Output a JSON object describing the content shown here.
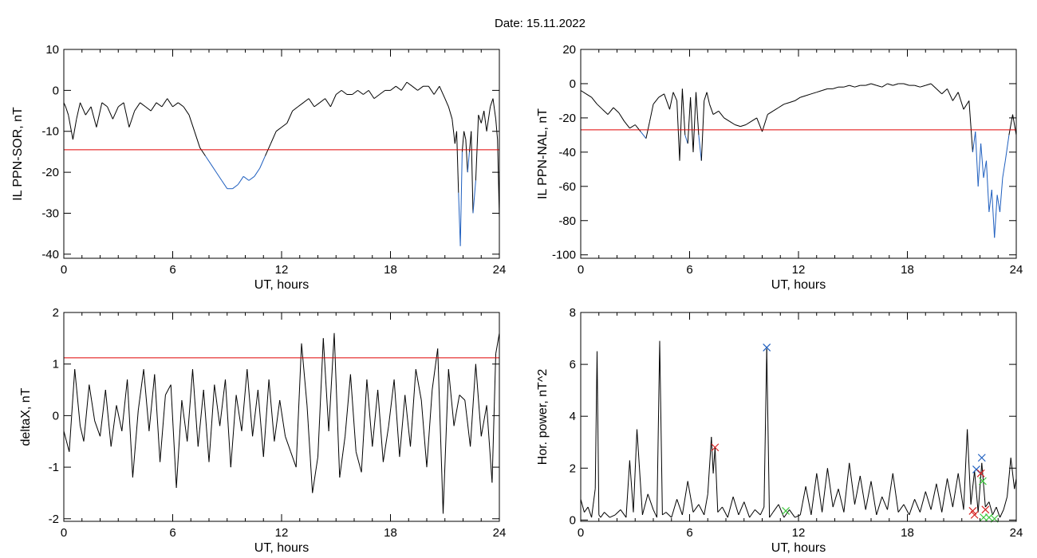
{
  "title": "Date:  15.11.2022",
  "colors": {
    "trace": "#000000",
    "below_threshold": "#1f5fbf",
    "threshold": "#e00000",
    "marker_blue": "#1f5fbf",
    "marker_red": "#d62020",
    "marker_green": "#3cc83c"
  },
  "chart_data": [
    {
      "id": "sor",
      "type": "line",
      "xlabel": "UT, hours",
      "ylabel": "IL PPN-SOR, nT",
      "xlim": [
        0,
        24
      ],
      "ylim": [
        -41,
        10
      ],
      "xticks": [
        "0",
        "6",
        "12",
        "18",
        "24"
      ],
      "yticks": [
        "10",
        "0",
        "-10",
        "-20",
        "-30",
        "-40"
      ],
      "threshold": -14.5,
      "grid": false,
      "x": [
        0,
        0.1,
        0.25,
        0.5,
        0.7,
        0.9,
        1.2,
        1.5,
        1.8,
        2.1,
        2.4,
        2.7,
        3.0,
        3.3,
        3.6,
        3.9,
        4.2,
        4.5,
        4.8,
        5.1,
        5.4,
        5.7,
        6.0,
        6.3,
        6.6,
        6.9,
        7.2,
        7.5,
        7.8,
        8.1,
        8.4,
        8.7,
        9.0,
        9.3,
        9.6,
        9.9,
        10.2,
        10.5,
        10.8,
        11.1,
        11.4,
        11.7,
        12.0,
        12.3,
        12.6,
        12.9,
        13.2,
        13.5,
        13.8,
        14.1,
        14.4,
        14.7,
        15.0,
        15.3,
        15.6,
        15.9,
        16.2,
        16.5,
        16.8,
        17.1,
        17.4,
        17.7,
        18.0,
        18.3,
        18.6,
        18.9,
        19.2,
        19.5,
        19.8,
        20.1,
        20.4,
        20.7,
        21.0,
        21.2,
        21.4,
        21.55,
        21.65,
        21.75,
        21.85,
        21.95,
        22.05,
        22.15,
        22.25,
        22.35,
        22.45,
        22.55,
        22.7,
        22.85,
        23.0,
        23.15,
        23.3,
        23.5,
        23.65,
        23.8,
        23.9,
        24.0
      ],
      "y": [
        -3,
        -4,
        -6,
        -12,
        -7,
        -3,
        -6,
        -4,
        -9,
        -3,
        -4,
        -7,
        -4,
        -3,
        -9,
        -5,
        -3,
        -4,
        -5,
        -3,
        -4,
        -2,
        -4,
        -3,
        -4,
        -6,
        -10,
        -14,
        -16,
        -18,
        -20,
        -22,
        -24,
        -24,
        -23,
        -21,
        -22,
        -21,
        -19,
        -16,
        -13,
        -10,
        -9,
        -8,
        -5,
        -4,
        -3,
        -2,
        -4,
        -3,
        -2,
        -4,
        -1,
        0,
        -1,
        -1,
        0,
        -1,
        0,
        -2,
        -1,
        0,
        0,
        1,
        0,
        2,
        1,
        0,
        1,
        1,
        -1,
        1,
        -2,
        -4,
        -7,
        -13,
        -10,
        -25,
        -38,
        -15,
        -10,
        -12,
        -20,
        -15,
        -10,
        -30,
        -22,
        -6,
        -8,
        -5,
        -10,
        -4,
        -2,
        -7,
        -12,
        -31
      ]
    },
    {
      "id": "nal",
      "type": "line",
      "xlabel": "UT, hours",
      "ylabel": "IL PPN-NAL, nT",
      "xlim": [
        0,
        24
      ],
      "ylim": [
        -102,
        20
      ],
      "xticks": [
        "0",
        "6",
        "12",
        "18",
        "24"
      ],
      "yticks": [
        "20",
        "0",
        "-20",
        "-40",
        "-60",
        "-80",
        "-100"
      ],
      "threshold": -27,
      "grid": false,
      "x": [
        0,
        0.3,
        0.6,
        0.9,
        1.2,
        1.5,
        1.8,
        2.1,
        2.4,
        2.7,
        3.0,
        3.3,
        3.6,
        3.8,
        4.0,
        4.3,
        4.6,
        4.9,
        5.1,
        5.3,
        5.45,
        5.6,
        5.75,
        5.9,
        6.05,
        6.2,
        6.35,
        6.5,
        6.65,
        6.8,
        6.95,
        7.1,
        7.3,
        7.6,
        7.9,
        8.2,
        8.5,
        8.8,
        9.1,
        9.4,
        9.7,
        10.0,
        10.3,
        10.6,
        10.9,
        11.2,
        11.5,
        11.8,
        12.1,
        12.4,
        12.7,
        13.0,
        13.3,
        13.6,
        13.9,
        14.2,
        14.5,
        14.8,
        15.1,
        15.4,
        15.7,
        16.0,
        16.3,
        16.6,
        16.9,
        17.2,
        17.5,
        17.8,
        18.1,
        18.4,
        18.7,
        19.0,
        19.3,
        19.6,
        19.9,
        20.2,
        20.5,
        20.8,
        21.1,
        21.4,
        21.6,
        21.75,
        21.9,
        22.05,
        22.2,
        22.35,
        22.5,
        22.65,
        22.8,
        22.95,
        23.1,
        23.25,
        23.4,
        23.6,
        23.8,
        24.0
      ],
      "y": [
        -4,
        -6,
        -8,
        -12,
        -15,
        -18,
        -14,
        -17,
        -22,
        -26,
        -24,
        -28,
        -32,
        -22,
        -12,
        -8,
        -6,
        -15,
        -5,
        -10,
        -45,
        -3,
        -30,
        -35,
        -8,
        -40,
        -5,
        -30,
        -45,
        -10,
        -5,
        -12,
        -18,
        -16,
        -20,
        -22,
        -24,
        -25,
        -24,
        -22,
        -20,
        -28,
        -18,
        -16,
        -14,
        -12,
        -11,
        -10,
        -8,
        -7,
        -6,
        -5,
        -4,
        -3,
        -3,
        -2,
        -2,
        -1,
        -2,
        -1,
        -1,
        0,
        -1,
        -2,
        0,
        -1,
        0,
        0,
        -1,
        -1,
        -2,
        -1,
        0,
        -3,
        -6,
        -3,
        -10,
        -5,
        -15,
        -10,
        -40,
        -28,
        -60,
        -35,
        -55,
        -45,
        -75,
        -62,
        -90,
        -65,
        -75,
        -55,
        -45,
        -30,
        -18,
        -30
      ]
    },
    {
      "id": "deltax",
      "type": "line",
      "xlabel": "UT, hours",
      "ylabel": "deltaX, nT",
      "xlim": [
        0,
        24
      ],
      "ylim": [
        -2.05,
        2
      ],
      "xticks": [
        "0",
        "6",
        "12",
        "18",
        "24"
      ],
      "yticks": [
        "2",
        "1",
        "0",
        "-1",
        "-2"
      ],
      "threshold": 1.12,
      "grid": false,
      "x": [
        0,
        0.3,
        0.6,
        0.9,
        1.1,
        1.4,
        1.7,
        2.0,
        2.3,
        2.6,
        2.9,
        3.2,
        3.5,
        3.8,
        4.1,
        4.4,
        4.7,
        5.0,
        5.3,
        5.6,
        5.9,
        6.2,
        6.5,
        6.8,
        7.1,
        7.4,
        7.7,
        8.0,
        8.3,
        8.6,
        8.9,
        9.2,
        9.5,
        9.8,
        10.1,
        10.4,
        10.7,
        11.0,
        11.3,
        11.6,
        11.9,
        12.2,
        12.5,
        12.8,
        13.1,
        13.4,
        13.7,
        14.0,
        14.3,
        14.6,
        14.9,
        15.2,
        15.5,
        15.8,
        16.1,
        16.4,
        16.7,
        17.0,
        17.3,
        17.6,
        17.9,
        18.2,
        18.5,
        18.8,
        19.1,
        19.4,
        19.7,
        20.0,
        20.3,
        20.6,
        20.9,
        21.2,
        21.5,
        21.8,
        22.1,
        22.4,
        22.7,
        23.0,
        23.3,
        23.6,
        23.8,
        24.0
      ],
      "y": [
        -0.3,
        -0.7,
        0.9,
        -0.2,
        -0.5,
        0.6,
        -0.1,
        -0.4,
        0.5,
        -0.6,
        0.2,
        -0.3,
        0.7,
        -1.2,
        0.1,
        0.9,
        -0.3,
        0.8,
        -0.9,
        0.4,
        0.6,
        -1.4,
        0.3,
        -0.5,
        0.9,
        -0.6,
        0.5,
        -0.9,
        0.6,
        -0.2,
        0.7,
        -1.0,
        0.4,
        -0.3,
        0.9,
        -0.4,
        0.5,
        -0.8,
        0.7,
        -0.5,
        0.3,
        -0.4,
        -0.7,
        -1.0,
        1.4,
        0.2,
        -1.5,
        -0.8,
        1.5,
        -0.3,
        1.6,
        -1.2,
        -0.4,
        0.8,
        -0.7,
        -1.1,
        0.7,
        -0.6,
        0.5,
        -0.9,
        -0.2,
        0.7,
        -0.8,
        0.4,
        -0.6,
        0.9,
        0.3,
        -1.0,
        0.5,
        1.3,
        -1.9,
        0.9,
        -0.2,
        0.4,
        0.3,
        -0.6,
        1.0,
        -0.4,
        0.2,
        -1.3,
        1.2,
        1.6
      ]
    },
    {
      "id": "power",
      "type": "line",
      "xlabel": "UT, hours",
      "ylabel": "Hor. power, nT^2",
      "xlim": [
        0,
        24
      ],
      "ylim": [
        -0.05,
        8
      ],
      "xticks": [
        "0",
        "6",
        "12",
        "18",
        "24"
      ],
      "yticks": [
        "8",
        "6",
        "4",
        "2",
        "0"
      ],
      "grid": false,
      "x": [
        0,
        0.2,
        0.4,
        0.6,
        0.8,
        0.9,
        1.0,
        1.1,
        1.3,
        1.6,
        1.9,
        2.2,
        2.5,
        2.7,
        2.9,
        3.1,
        3.4,
        3.7,
        4.0,
        4.2,
        4.35,
        4.5,
        4.7,
        5.0,
        5.3,
        5.6,
        5.9,
        6.2,
        6.5,
        6.8,
        7.0,
        7.2,
        7.3,
        7.4,
        7.55,
        7.8,
        8.1,
        8.4,
        8.7,
        9.0,
        9.3,
        9.6,
        9.9,
        10.1,
        10.25,
        10.4,
        10.6,
        10.9,
        11.2,
        11.5,
        11.8,
        12.1,
        12.4,
        12.7,
        13.0,
        13.3,
        13.6,
        13.9,
        14.2,
        14.5,
        14.8,
        15.1,
        15.4,
        15.7,
        16.0,
        16.3,
        16.6,
        16.9,
        17.2,
        17.5,
        17.8,
        18.1,
        18.4,
        18.7,
        19.0,
        19.3,
        19.6,
        19.9,
        20.2,
        20.5,
        20.8,
        21.1,
        21.3,
        21.5,
        21.7,
        21.9,
        22.1,
        22.3,
        22.5,
        22.7,
        22.9,
        23.1,
        23.3,
        23.5,
        23.7,
        23.9,
        24.0
      ],
      "y": [
        0.8,
        0.3,
        0.5,
        0.1,
        1.2,
        6.5,
        0.2,
        0.1,
        0.3,
        0.1,
        0.2,
        0.4,
        0.1,
        2.3,
        0.3,
        3.5,
        0.2,
        1.0,
        0.4,
        0.1,
        6.9,
        0.2,
        0.3,
        0.1,
        0.8,
        0.2,
        1.5,
        0.3,
        0.6,
        0.2,
        1.0,
        3.2,
        1.8,
        2.8,
        0.3,
        0.5,
        0.1,
        0.9,
        0.2,
        0.7,
        0.1,
        0.4,
        0.2,
        0.5,
        6.6,
        0.1,
        0.3,
        0.6,
        0.1,
        0.4,
        0.1,
        0.2,
        1.3,
        0.2,
        1.8,
        0.3,
        2.0,
        0.5,
        1.2,
        0.3,
        2.2,
        0.6,
        1.7,
        0.4,
        1.5,
        0.2,
        0.9,
        0.4,
        1.8,
        0.3,
        0.6,
        0.2,
        0.8,
        0.3,
        1.1,
        0.4,
        1.4,
        0.3,
        1.6,
        0.5,
        1.8,
        0.4,
        3.5,
        0.6,
        1.9,
        0.3,
        2.2,
        0.5,
        0.7,
        0.2,
        0.5,
        0.1,
        0.4,
        0.9,
        2.4,
        1.2,
        1.6
      ],
      "markers": [
        {
          "x": 7.4,
          "y": 2.8,
          "color": "red"
        },
        {
          "x": 10.25,
          "y": 6.65,
          "color": "blue"
        },
        {
          "x": 11.3,
          "y": 0.35,
          "color": "green"
        },
        {
          "x": 21.6,
          "y": 0.35,
          "color": "red"
        },
        {
          "x": 21.7,
          "y": 0.2,
          "color": "red"
        },
        {
          "x": 21.8,
          "y": 1.95,
          "color": "blue"
        },
        {
          "x": 22.1,
          "y": 2.4,
          "color": "blue"
        },
        {
          "x": 22.05,
          "y": 1.8,
          "color": "red"
        },
        {
          "x": 22.15,
          "y": 1.5,
          "color": "green"
        },
        {
          "x": 22.3,
          "y": 0.4,
          "color": "red"
        },
        {
          "x": 22.2,
          "y": 0.1,
          "color": "green"
        },
        {
          "x": 22.5,
          "y": 0.1,
          "color": "green"
        },
        {
          "x": 22.8,
          "y": 0.05,
          "color": "green"
        }
      ]
    }
  ]
}
